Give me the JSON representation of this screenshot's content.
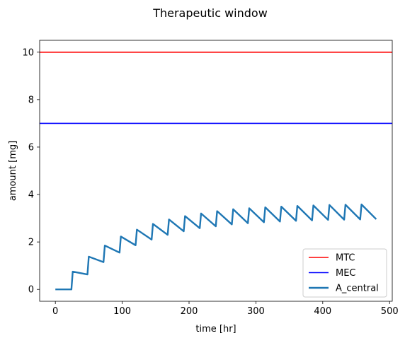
{
  "chart_data": {
    "type": "line",
    "title": "Therapeutic window",
    "xlabel": "time [hr]",
    "ylabel": "amount [mg]",
    "xlim": [
      -23.5,
      504
    ],
    "ylim": [
      -0.5,
      10.5
    ],
    "xticks": [
      0,
      100,
      200,
      300,
      400,
      500
    ],
    "yticks": [
      0,
      2,
      4,
      6,
      8,
      10
    ],
    "grid": false,
    "legend_position": "lower right",
    "hlines": [
      {
        "name": "MTC",
        "y": 10,
        "color": "#ff0000"
      },
      {
        "name": "MEC",
        "y": 7,
        "color": "#0000ff"
      }
    ],
    "series": [
      {
        "name": "A_central",
        "color": "#1f77b4",
        "x": [
          0,
          24,
          24.01,
          26,
          48,
          48.01,
          50,
          72,
          72.01,
          74,
          96,
          96.01,
          98,
          120,
          120.01,
          122,
          144,
          144.01,
          146,
          168,
          168.01,
          170,
          192,
          192.01,
          194,
          216,
          216.01,
          218,
          240,
          240.01,
          242,
          264,
          264.01,
          266,
          288,
          288.01,
          290,
          312,
          312.01,
          314,
          336,
          336.01,
          338,
          360,
          360.01,
          362,
          384,
          384.01,
          386,
          408,
          408.01,
          410,
          432,
          432.01,
          434,
          456,
          456.01,
          458,
          480
        ],
        "y": [
          0,
          0,
          0.0,
          0.75,
          0.63,
          0.63,
          1.38,
          1.15,
          1.15,
          1.85,
          1.55,
          1.55,
          2.23,
          1.86,
          1.86,
          2.52,
          2.1,
          2.1,
          2.76,
          2.3,
          2.3,
          2.95,
          2.45,
          2.45,
          3.09,
          2.58,
          2.58,
          3.2,
          2.66,
          2.66,
          3.3,
          2.74,
          2.74,
          3.38,
          2.79,
          2.79,
          3.42,
          2.83,
          2.83,
          3.46,
          2.86,
          2.86,
          3.49,
          2.89,
          2.89,
          3.52,
          2.91,
          2.91,
          3.54,
          2.93,
          2.93,
          3.56,
          2.94,
          2.94,
          3.57,
          2.95,
          2.95,
          3.58,
          2.96
        ]
      }
    ]
  }
}
